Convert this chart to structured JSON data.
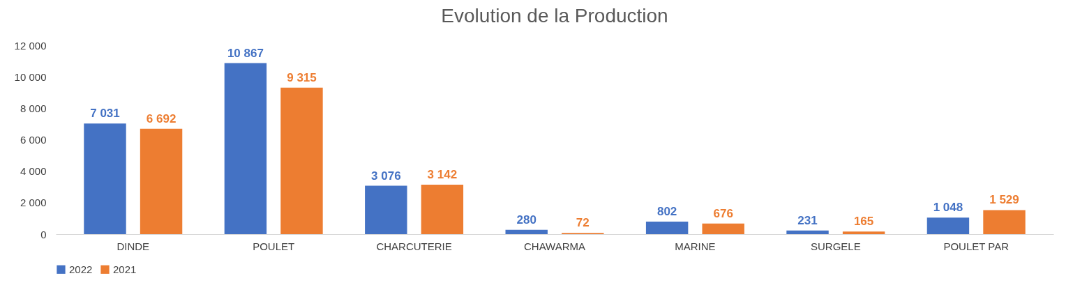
{
  "chart_data": {
    "type": "bar",
    "title": "Evolution de la Production",
    "categories": [
      "DINDE",
      "POULET",
      "CHARCUTERIE",
      "CHAWARMA",
      "MARINE",
      "SURGELE",
      "POULET PAR"
    ],
    "series": [
      {
        "name": "2022",
        "color": "#4472c4",
        "values": [
          7031,
          10867,
          3076,
          280,
          802,
          231,
          1048
        ],
        "value_labels": [
          "7 031",
          "10 867",
          "3 076",
          "280",
          "802",
          "231",
          "1 048"
        ]
      },
      {
        "name": "2021",
        "color": "#ed7d31",
        "values": [
          6692,
          9315,
          3142,
          72,
          676,
          165,
          1529
        ],
        "value_labels": [
          "6 692",
          "9 315",
          "3 142",
          "72",
          "676",
          "165",
          "1 529"
        ]
      }
    ],
    "ylim": [
      0,
      12000
    ],
    "yticks": [
      {
        "value": 0,
        "label": "0"
      },
      {
        "value": 2000,
        "label": "2 000"
      },
      {
        "value": 4000,
        "label": "4 000"
      },
      {
        "value": 6000,
        "label": "6 000"
      },
      {
        "value": 8000,
        "label": "8 000"
      },
      {
        "value": 10000,
        "label": "10 000"
      },
      {
        "value": 12000,
        "label": "12 000"
      }
    ],
    "grid": false,
    "legend": "bottom"
  }
}
